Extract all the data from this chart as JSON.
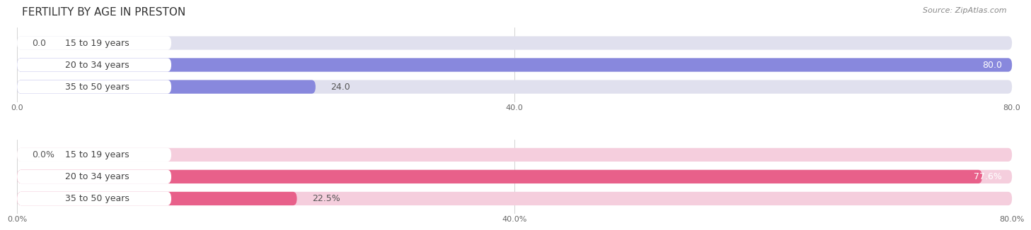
{
  "title": "FERTILITY BY AGE IN PRESTON",
  "source": "Source: ZipAtlas.com",
  "top_section": {
    "categories": [
      "15 to 19 years",
      "20 to 34 years",
      "35 to 50 years"
    ],
    "values": [
      0.0,
      80.0,
      24.0
    ],
    "max_value": 80.0,
    "bar_color": "#8888dd",
    "bar_bg_color": "#e0e0ee",
    "x_ticks": [
      0.0,
      40.0,
      80.0
    ],
    "x_tick_labels": [
      "0.0",
      "40.0",
      "80.0"
    ]
  },
  "bottom_section": {
    "categories": [
      "15 to 19 years",
      "20 to 34 years",
      "35 to 50 years"
    ],
    "values": [
      0.0,
      77.6,
      22.5
    ],
    "max_value": 80.0,
    "bar_color": "#e8608a",
    "bar_bg_color": "#f5cedd",
    "x_ticks": [
      0.0,
      40.0,
      80.0
    ],
    "x_tick_labels": [
      "0.0%",
      "40.0%",
      "80.0%"
    ]
  },
  "bg_color": "#ffffff",
  "title_fontsize": 11,
  "source_fontsize": 8,
  "label_fontsize": 9,
  "value_fontsize": 9,
  "tick_fontsize": 8
}
